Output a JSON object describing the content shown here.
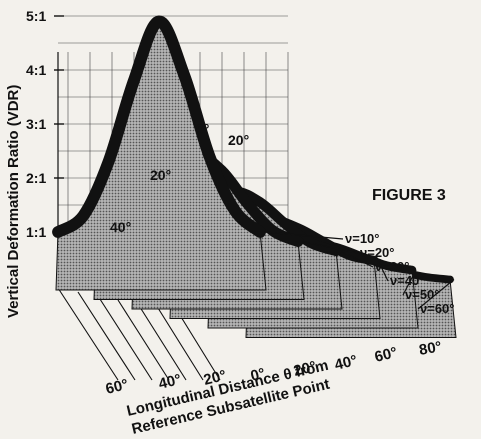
{
  "figure_label": "FIGURE 3",
  "chart_data": {
    "type": "area",
    "ylabel": "Vertical Deformation Ratio (VDR)",
    "xlabel_line1": "Longitudinal Distance θ from",
    "xlabel_line2": "Reference Subsatellite Point",
    "y_tick_labels": [
      "5:1",
      "4:1",
      "3:1",
      "2:1",
      "1:1"
    ],
    "y_tick_values": [
      5,
      4,
      3,
      2,
      1
    ],
    "x_tick_labels": [
      "60°",
      "40°",
      "20°",
      "0°",
      "20°",
      "40°",
      "60°",
      "80°"
    ],
    "surface_angle_labels": [
      "0°",
      "20°",
      "20°",
      "40°"
    ],
    "x": [
      -80,
      -60,
      -40,
      -20,
      0,
      20,
      40,
      60,
      80
    ],
    "series": [
      {
        "name": "ν=10°",
        "values": [
          1.0,
          1.3,
          2.3,
          3.8,
          4.9,
          3.9,
          2.4,
          1.4,
          1.0
        ]
      },
      {
        "name": "ν=20°",
        "values": [
          1.0,
          1.2,
          1.7,
          2.3,
          2.6,
          2.3,
          1.7,
          1.2,
          1.0
        ]
      },
      {
        "name": "ν=30°",
        "values": [
          1.0,
          1.15,
          1.5,
          1.9,
          2.1,
          1.9,
          1.5,
          1.15,
          1.0
        ]
      },
      {
        "name": "ν=40°",
        "values": [
          1.0,
          1.1,
          1.35,
          1.6,
          1.75,
          1.6,
          1.35,
          1.1,
          1.0
        ]
      },
      {
        "name": "ν=50°",
        "values": [
          1.0,
          1.08,
          1.25,
          1.42,
          1.5,
          1.42,
          1.25,
          1.08,
          1.0
        ]
      },
      {
        "name": "ν=60°",
        "values": [
          1.0,
          1.05,
          1.15,
          1.28,
          1.33,
          1.28,
          1.15,
          1.05,
          1.0
        ]
      }
    ],
    "ylim": [
      0,
      5.2
    ],
    "colors": {
      "ink": "#111111",
      "surface": "#9a9a9a",
      "paper": "#f3f1ec"
    }
  }
}
